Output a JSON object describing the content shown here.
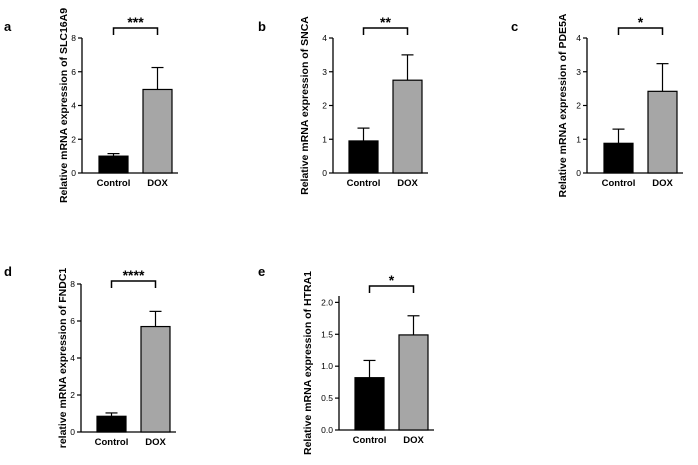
{
  "chart_data": [
    {
      "type": "bar",
      "panel": "a",
      "categories": [
        "Control",
        "DOX"
      ],
      "values": [
        1.0,
        4.95
      ],
      "errors": [
        0.15,
        1.3
      ],
      "colors": [
        "#000000",
        "#a6a6a6"
      ],
      "ylabel": "Relative mRNA expression of SLC16A9",
      "ylim": [
        0,
        8
      ],
      "yticks": [
        0,
        2,
        4,
        6,
        8
      ],
      "yticklabels": [
        "0",
        "2",
        "4",
        "6",
        "8"
      ],
      "significance": "***"
    },
    {
      "type": "bar",
      "panel": "b",
      "categories": [
        "Control",
        "DOX"
      ],
      "values": [
        0.95,
        2.75
      ],
      "errors": [
        0.38,
        0.75
      ],
      "colors": [
        "#000000",
        "#a6a6a6"
      ],
      "ylabel": "Relative mRNA expression of SNCA",
      "ylim": [
        0,
        4
      ],
      "yticks": [
        0,
        1,
        2,
        3,
        4
      ],
      "yticklabels": [
        "0",
        "1",
        "2",
        "3",
        "4"
      ],
      "significance": "**"
    },
    {
      "type": "bar",
      "panel": "c",
      "categories": [
        "Control",
        "DOX"
      ],
      "values": [
        0.88,
        2.42
      ],
      "errors": [
        0.42,
        0.82
      ],
      "colors": [
        "#000000",
        "#a6a6a6"
      ],
      "ylabel": "Relative mRNA expression of PDE5A",
      "ylim": [
        0,
        4
      ],
      "yticks": [
        0,
        1,
        2,
        3,
        4
      ],
      "yticklabels": [
        "0",
        "1",
        "2",
        "3",
        "4"
      ],
      "significance": "*"
    },
    {
      "type": "bar",
      "panel": "d",
      "categories": [
        "Control",
        "DOX"
      ],
      "values": [
        0.85,
        5.7
      ],
      "errors": [
        0.18,
        0.82
      ],
      "colors": [
        "#000000",
        "#a6a6a6"
      ],
      "ylabel": "relative mRNA expression of FNDC1",
      "ylim": [
        0,
        8
      ],
      "yticks": [
        0,
        2,
        4,
        6,
        8
      ],
      "yticklabels": [
        "0",
        "2",
        "4",
        "6",
        "8"
      ],
      "significance": "****"
    },
    {
      "type": "bar",
      "panel": "e",
      "categories": [
        "Control",
        "DOX"
      ],
      "values": [
        0.82,
        1.49
      ],
      "errors": [
        0.27,
        0.3
      ],
      "colors": [
        "#000000",
        "#a6a6a6"
      ],
      "ylabel": "Relative mRNA expression of HTRA1",
      "ylim": [
        0,
        2.1
      ],
      "yticks": [
        0,
        0.5,
        1.0,
        1.5,
        2.0
      ],
      "yticklabels": [
        "0.0",
        "0.5",
        "1.0",
        "1.5",
        "2.0"
      ],
      "significance": "*"
    }
  ]
}
